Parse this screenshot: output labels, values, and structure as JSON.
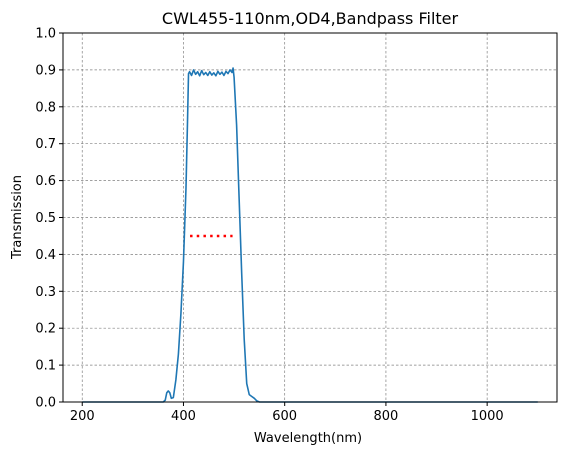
{
  "chart_data": {
    "type": "line",
    "title": "CWL455-110nm,OD4,Bandpass Filter",
    "xlabel": "Wavelength(nm)",
    "ylabel": "Transmission",
    "xlim": [
      162,
      1138
    ],
    "ylim": [
      0,
      1.0
    ],
    "x_ticks": [
      200,
      400,
      600,
      800,
      1000
    ],
    "y_ticks": [
      0.0,
      0.1,
      0.2,
      0.3,
      0.4,
      0.5,
      0.6,
      0.7,
      0.8,
      0.9,
      1.0
    ],
    "x_tick_labels": [
      "200",
      "400",
      "600",
      "800",
      "1000"
    ],
    "y_tick_labels": [
      "0.0",
      "0.1",
      "0.2",
      "0.3",
      "0.4",
      "0.5",
      "0.6",
      "0.7",
      "0.8",
      "0.9",
      "1.0"
    ],
    "grid": true,
    "series": [
      {
        "color": "#1f77b4",
        "style": "solid",
        "x": [
          200,
          360,
          364,
          367,
          370,
          373,
          376,
          380,
          385,
          390,
          395,
          400,
          405,
          408,
          410,
          412,
          416,
          420,
          424,
          428,
          432,
          436,
          440,
          444,
          448,
          452,
          456,
          460,
          464,
          468,
          472,
          476,
          480,
          484,
          488,
          492,
          496,
          498,
          500,
          505,
          510,
          515,
          520,
          525,
          530,
          535,
          540,
          545,
          550,
          560,
          700,
          900,
          1100
        ],
        "y": [
          0.0,
          0.0,
          0.005,
          0.025,
          0.03,
          0.025,
          0.01,
          0.012,
          0.06,
          0.13,
          0.24,
          0.38,
          0.58,
          0.76,
          0.89,
          0.895,
          0.885,
          0.9,
          0.888,
          0.895,
          0.884,
          0.898,
          0.887,
          0.893,
          0.885,
          0.895,
          0.886,
          0.892,
          0.884,
          0.896,
          0.888,
          0.894,
          0.885,
          0.896,
          0.89,
          0.9,
          0.893,
          0.905,
          0.88,
          0.75,
          0.55,
          0.35,
          0.17,
          0.05,
          0.02,
          0.015,
          0.01,
          0.003,
          0.0,
          0.0,
          0.0,
          0.0,
          0.0
        ]
      },
      {
        "color": "#ff0000",
        "style": "dotted",
        "x": [
          413,
          497
        ],
        "y": [
          0.45,
          0.45
        ]
      }
    ]
  }
}
